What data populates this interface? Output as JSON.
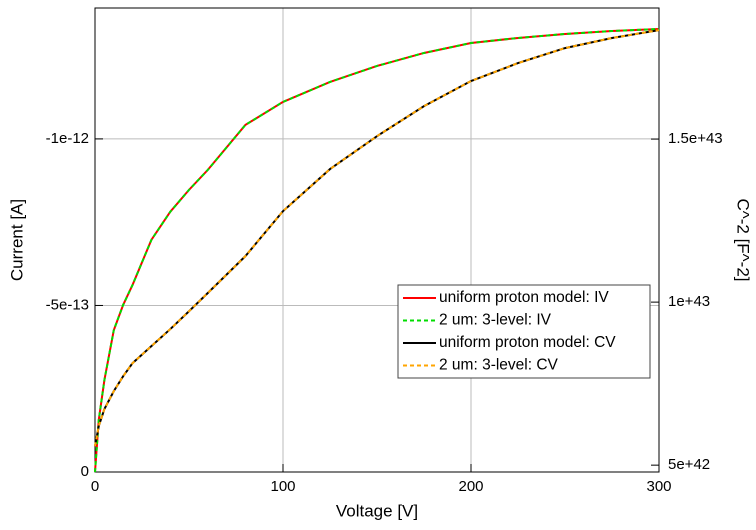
{
  "chart_data": {
    "type": "line",
    "x_label": "Voltage [V]",
    "y_label": "Current [A]",
    "y2_label": "C^-2 [F^-2]",
    "x": [
      0,
      2,
      5,
      10,
      15,
      20,
      30,
      40,
      50,
      60,
      80,
      100,
      125,
      150,
      175,
      200,
      225,
      250,
      275,
      300
    ],
    "series": [
      {
        "name": "uniform proton model: IV",
        "color": "#ff0000",
        "values": [
          0,
          -1.56e-13,
          -2.76e-13,
          -4.26e-13,
          -5.02e-13,
          -5.62e-13,
          -6.97e-13,
          -7.81e-13,
          -8.47e-13,
          -9.07e-13,
          -1.042e-12,
          -1.111e-12,
          -1.171e-12,
          -1.219e-12,
          -1.258e-12,
          -1.288e-12,
          -1.303e-12,
          -1.315e-12,
          -1.324e-12,
          -1.33e-12
        ]
      },
      {
        "name": "2 um: 3-level: IV",
        "color": "#00dd00",
        "dashed": true,
        "values": [
          0,
          -1.56e-13,
          -2.76e-13,
          -4.26e-13,
          -5.02e-13,
          -5.62e-13,
          -6.97e-13,
          -7.81e-13,
          -8.47e-13,
          -9.07e-13,
          -1.042e-12,
          -1.111e-12,
          -1.171e-12,
          -1.219e-12,
          -1.258e-12,
          -1.288e-12,
          -1.303e-12,
          -1.315e-12,
          -1.324e-12,
          -1.33e-12
        ]
      },
      {
        "name": "uniform proton model: CV",
        "color": "#000000",
        "axis": "y2",
        "values": [
          5.58e+42,
          6.2e+42,
          6.72e+42,
          7.27e+42,
          7.73e+42,
          8.13e+42,
          8.65e+42,
          9.17e+42,
          9.72e+42,
          1.028e+43,
          1.141e+43,
          1.279e+43,
          1.408e+43,
          1.509e+43,
          1.601e+43,
          1.678e+43,
          1.733e+43,
          1.779e+43,
          1.81e+43,
          1.834e+43
        ]
      },
      {
        "name": "2 um: 3-level: CV",
        "color": "#ffa500",
        "dashed": true,
        "axis": "y2",
        "values": [
          5.58e+42,
          6.2e+42,
          6.72e+42,
          7.27e+42,
          7.73e+42,
          8.13e+42,
          8.65e+42,
          9.17e+42,
          9.72e+42,
          1.028e+43,
          1.141e+43,
          1.279e+43,
          1.408e+43,
          1.509e+43,
          1.601e+43,
          1.678e+43,
          1.733e+43,
          1.779e+43,
          1.81e+43,
          1.834e+43
        ]
      }
    ],
    "xlim": [
      0,
      300
    ],
    "xticks": [
      0,
      100,
      200,
      300
    ],
    "ylim": [
      0,
      -1.393e-12
    ],
    "yticks": [
      0,
      -5e-13,
      -1e-12
    ],
    "y2lim": [
      4.79e+42,
      1.902e+43
    ],
    "y2ticks": [
      5e+42,
      1e+43,
      1.5e+43
    ],
    "grid": true,
    "legend": "lower right"
  }
}
